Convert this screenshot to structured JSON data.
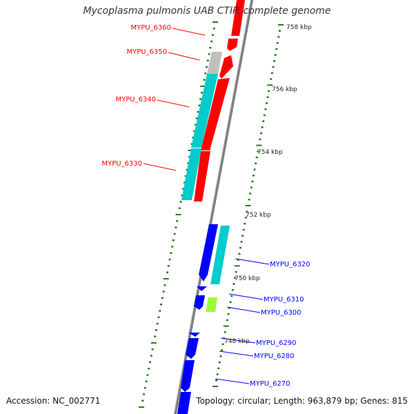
{
  "title": "Mycoplasma pulmonis UAB CTIP, complete genome",
  "accession": "Accession: NC_002771",
  "summary": "Topology: circular; Length: 963,879 bp; Genes: 815",
  "ticks": [
    {
      "label": "758 kbp"
    },
    {
      "label": "756 kbp"
    },
    {
      "label": "754 kbp"
    },
    {
      "label": "752 kbp"
    },
    {
      "label": "750 kbp"
    },
    {
      "label": "748 kbp"
    }
  ],
  "genes": [
    {
      "id": "MYPU_6360",
      "strand": "+",
      "color": "#ff0000"
    },
    {
      "id": "MYPU_6350",
      "strand": "+",
      "color": "#ff0000"
    },
    {
      "id": "MYPU_6340",
      "strand": "+",
      "color": "#ff0000"
    },
    {
      "id": "MYPU_6330",
      "strand": "+",
      "color": "#ff0000"
    },
    {
      "id": "MYPU_6320",
      "strand": "-",
      "color": "#0000ff"
    },
    {
      "id": "MYPU_6310",
      "strand": "-",
      "color": "#0000ff"
    },
    {
      "id": "MYPU_6300",
      "strand": "-",
      "color": "#0000ff"
    },
    {
      "id": "MYPU_6290",
      "strand": "-",
      "color": "#0000ff"
    },
    {
      "id": "MYPU_6280",
      "strand": "-",
      "color": "#0000ff"
    },
    {
      "id": "MYPU_6270",
      "strand": "-",
      "color": "#0000ff"
    }
  ],
  "colors": {
    "forward_gene": "#ff0000",
    "reverse_gene": "#0000ff",
    "cds_feature": "#00cccc",
    "other_feature": "#c0c0c0",
    "highlight_feature": "#99ff33",
    "backbone": "#808080",
    "tick": "#2a7a1f"
  }
}
